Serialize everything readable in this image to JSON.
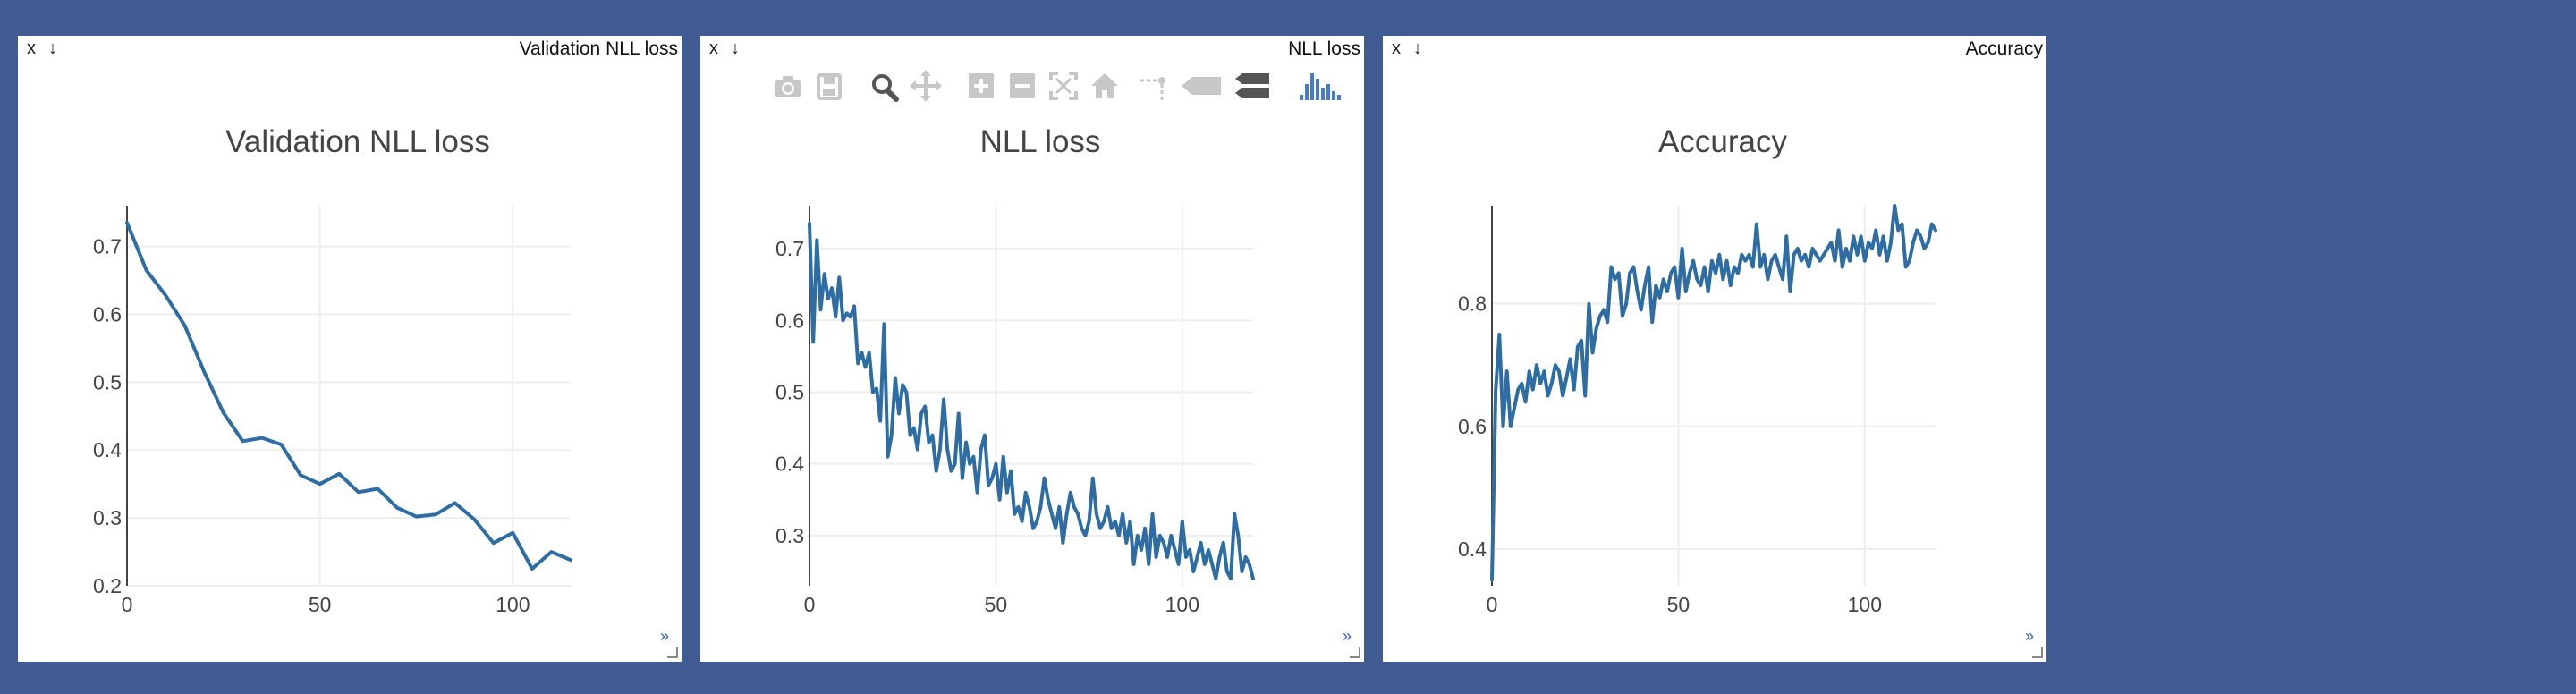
{
  "panes": [
    {
      "id": "pane-validation-nll-loss",
      "header_title": "Validation NLL loss",
      "close_label": "x",
      "download_label": "↓",
      "expand_label": "»",
      "show_modebar": false
    },
    {
      "id": "pane-nll-loss",
      "header_title": "NLL loss",
      "close_label": "x",
      "download_label": "↓",
      "expand_label": "»",
      "show_modebar": true
    },
    {
      "id": "pane-accuracy",
      "header_title": "Accuracy",
      "close_label": "x",
      "download_label": "↓",
      "expand_label": "»",
      "show_modebar": false
    }
  ],
  "modebar_icons": [
    "camera-icon",
    "save-icon",
    "zoom-icon",
    "pan-icon",
    "zoom-in-icon",
    "zoom-out-icon",
    "autoscale-icon",
    "reset-axes-icon",
    "spike-lines-icon",
    "hover-closest-icon",
    "hover-compare-icon",
    "plotly-logo-icon"
  ],
  "colors": {
    "background": "#415b93",
    "line": "#2e6da4",
    "grid": "#eeeeee",
    "logo": "#447adb"
  },
  "chart_data": [
    {
      "type": "line",
      "title": "Validation NLL loss",
      "xlabel": "",
      "ylabel": "",
      "xlim": [
        0,
        115
      ],
      "ylim": [
        0.2,
        0.76
      ],
      "xticks": [
        0,
        50,
        100
      ],
      "yticks": [
        0.2,
        0.3,
        0.4,
        0.5,
        0.6,
        0.7
      ],
      "ytick_labels": [
        "0.2",
        "0.3",
        "0.4",
        "0.5",
        "0.6",
        "0.7"
      ],
      "grid": true,
      "series": [
        {
          "x": [
            0,
            5,
            10,
            15,
            20,
            25,
            30,
            35,
            40,
            45,
            50,
            55,
            60,
            65,
            70,
            75,
            80,
            85,
            90,
            95,
            100,
            105,
            110,
            115
          ],
          "y": [
            0.735,
            0.665,
            0.628,
            0.583,
            0.515,
            0.455,
            0.413,
            0.418,
            0.408,
            0.363,
            0.35,
            0.365,
            0.338,
            0.343,
            0.315,
            0.302,
            0.305,
            0.322,
            0.298,
            0.263,
            0.278,
            0.225,
            0.25,
            0.238
          ]
        }
      ]
    },
    {
      "type": "line",
      "title": "NLL loss",
      "xlabel": "",
      "ylabel": "",
      "xlim": [
        0,
        119
      ],
      "ylim": [
        0.23,
        0.76
      ],
      "xticks": [
        0,
        50,
        100
      ],
      "yticks": [
        0.3,
        0.4,
        0.5,
        0.6,
        0.7
      ],
      "ytick_labels": [
        "0.3",
        "0.4",
        "0.5",
        "0.6",
        "0.7"
      ],
      "grid": true,
      "series": [
        {
          "x": [
            0,
            1,
            2,
            3,
            4,
            5,
            6,
            7,
            8,
            9,
            10,
            11,
            12,
            13,
            14,
            15,
            16,
            17,
            18,
            19,
            20,
            21,
            22,
            23,
            24,
            25,
            26,
            27,
            28,
            29,
            30,
            31,
            32,
            33,
            34,
            35,
            36,
            37,
            38,
            39,
            40,
            41,
            42,
            43,
            44,
            45,
            46,
            47,
            48,
            49,
            50,
            51,
            52,
            53,
            54,
            55,
            56,
            57,
            58,
            59,
            60,
            61,
            62,
            63,
            64,
            65,
            66,
            67,
            68,
            69,
            70,
            71,
            72,
            73,
            74,
            75,
            76,
            77,
            78,
            79,
            80,
            81,
            82,
            83,
            84,
            85,
            86,
            87,
            88,
            89,
            90,
            91,
            92,
            93,
            94,
            95,
            96,
            97,
            98,
            99,
            100,
            101,
            102,
            103,
            104,
            105,
            106,
            107,
            108,
            109,
            110,
            111,
            112,
            113,
            114,
            115,
            116,
            117,
            118,
            119
          ],
          "y": [
            0.735,
            0.57,
            0.712,
            0.615,
            0.665,
            0.63,
            0.645,
            0.605,
            0.66,
            0.6,
            0.61,
            0.605,
            0.62,
            0.54,
            0.555,
            0.535,
            0.555,
            0.5,
            0.505,
            0.46,
            0.595,
            0.41,
            0.44,
            0.52,
            0.47,
            0.51,
            0.5,
            0.44,
            0.45,
            0.42,
            0.47,
            0.48,
            0.43,
            0.44,
            0.39,
            0.42,
            0.49,
            0.42,
            0.39,
            0.4,
            0.47,
            0.38,
            0.43,
            0.4,
            0.41,
            0.36,
            0.42,
            0.44,
            0.37,
            0.38,
            0.4,
            0.35,
            0.41,
            0.36,
            0.39,
            0.33,
            0.34,
            0.32,
            0.36,
            0.34,
            0.31,
            0.32,
            0.34,
            0.38,
            0.35,
            0.33,
            0.31,
            0.34,
            0.29,
            0.33,
            0.36,
            0.34,
            0.33,
            0.31,
            0.3,
            0.32,
            0.38,
            0.33,
            0.31,
            0.32,
            0.34,
            0.31,
            0.32,
            0.3,
            0.33,
            0.29,
            0.32,
            0.26,
            0.3,
            0.28,
            0.31,
            0.26,
            0.33,
            0.27,
            0.3,
            0.29,
            0.27,
            0.3,
            0.28,
            0.26,
            0.32,
            0.27,
            0.28,
            0.25,
            0.27,
            0.29,
            0.26,
            0.28,
            0.26,
            0.24,
            0.27,
            0.29,
            0.25,
            0.24,
            0.33,
            0.3,
            0.25,
            0.27,
            0.26,
            0.24
          ]
        }
      ]
    },
    {
      "type": "line",
      "title": "Accuracy",
      "xlabel": "",
      "ylabel": "",
      "xlim": [
        0,
        119
      ],
      "ylim": [
        0.34,
        0.96
      ],
      "xticks": [
        0,
        50,
        100
      ],
      "yticks": [
        0.4,
        0.6,
        0.8
      ],
      "ytick_labels": [
        "0.4",
        "0.6",
        "0.8"
      ],
      "grid": true,
      "series": [
        {
          "x": [
            0,
            1,
            2,
            3,
            4,
            5,
            6,
            7,
            8,
            9,
            10,
            11,
            12,
            13,
            14,
            15,
            16,
            17,
            18,
            19,
            20,
            21,
            22,
            23,
            24,
            25,
            26,
            27,
            28,
            29,
            30,
            31,
            32,
            33,
            34,
            35,
            36,
            37,
            38,
            39,
            40,
            41,
            42,
            43,
            44,
            45,
            46,
            47,
            48,
            49,
            50,
            51,
            52,
            53,
            54,
            55,
            56,
            57,
            58,
            59,
            60,
            61,
            62,
            63,
            64,
            65,
            66,
            67,
            68,
            69,
            70,
            71,
            72,
            73,
            74,
            75,
            76,
            77,
            78,
            79,
            80,
            81,
            82,
            83,
            84,
            85,
            86,
            87,
            88,
            89,
            90,
            91,
            92,
            93,
            94,
            95,
            96,
            97,
            98,
            99,
            100,
            101,
            102,
            103,
            104,
            105,
            106,
            107,
            108,
            109,
            110,
            111,
            112,
            113,
            114,
            115,
            116,
            117,
            118,
            119
          ],
          "y": [
            0.35,
            0.66,
            0.75,
            0.6,
            0.69,
            0.6,
            0.63,
            0.66,
            0.67,
            0.64,
            0.69,
            0.66,
            0.7,
            0.67,
            0.69,
            0.65,
            0.67,
            0.7,
            0.69,
            0.65,
            0.68,
            0.71,
            0.66,
            0.73,
            0.74,
            0.65,
            0.8,
            0.72,
            0.76,
            0.78,
            0.79,
            0.77,
            0.86,
            0.84,
            0.85,
            0.78,
            0.8,
            0.85,
            0.86,
            0.82,
            0.79,
            0.83,
            0.86,
            0.77,
            0.83,
            0.81,
            0.84,
            0.82,
            0.85,
            0.86,
            0.81,
            0.89,
            0.82,
            0.85,
            0.87,
            0.84,
            0.83,
            0.86,
            0.82,
            0.87,
            0.85,
            0.88,
            0.84,
            0.87,
            0.83,
            0.86,
            0.85,
            0.88,
            0.87,
            0.88,
            0.86,
            0.93,
            0.86,
            0.88,
            0.84,
            0.87,
            0.88,
            0.86,
            0.84,
            0.91,
            0.82,
            0.88,
            0.89,
            0.87,
            0.88,
            0.86,
            0.89,
            0.88,
            0.87,
            0.88,
            0.89,
            0.9,
            0.87,
            0.92,
            0.86,
            0.89,
            0.87,
            0.91,
            0.88,
            0.91,
            0.87,
            0.9,
            0.89,
            0.92,
            0.88,
            0.91,
            0.87,
            0.9,
            0.96,
            0.92,
            0.93,
            0.86,
            0.87,
            0.9,
            0.92,
            0.91,
            0.89,
            0.9,
            0.93,
            0.92
          ]
        }
      ]
    }
  ]
}
